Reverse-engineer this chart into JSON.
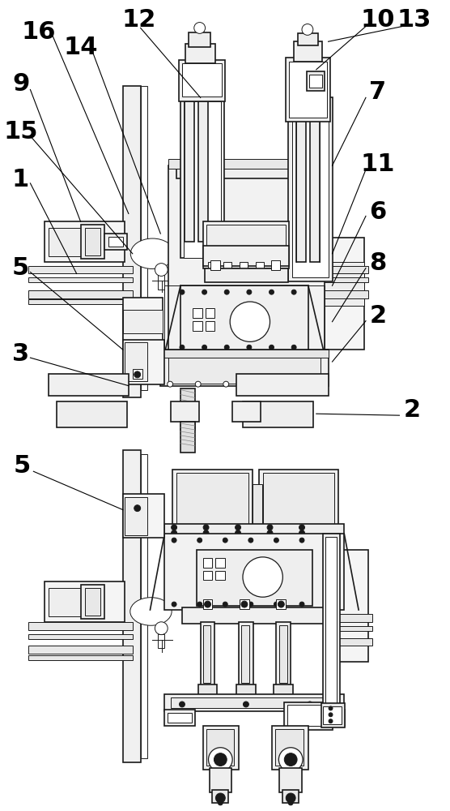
{
  "bg_color": "#ffffff",
  "line_color": "#1a1a1a",
  "fig_width": 5.56,
  "fig_height": 10.0,
  "dpi": 100
}
